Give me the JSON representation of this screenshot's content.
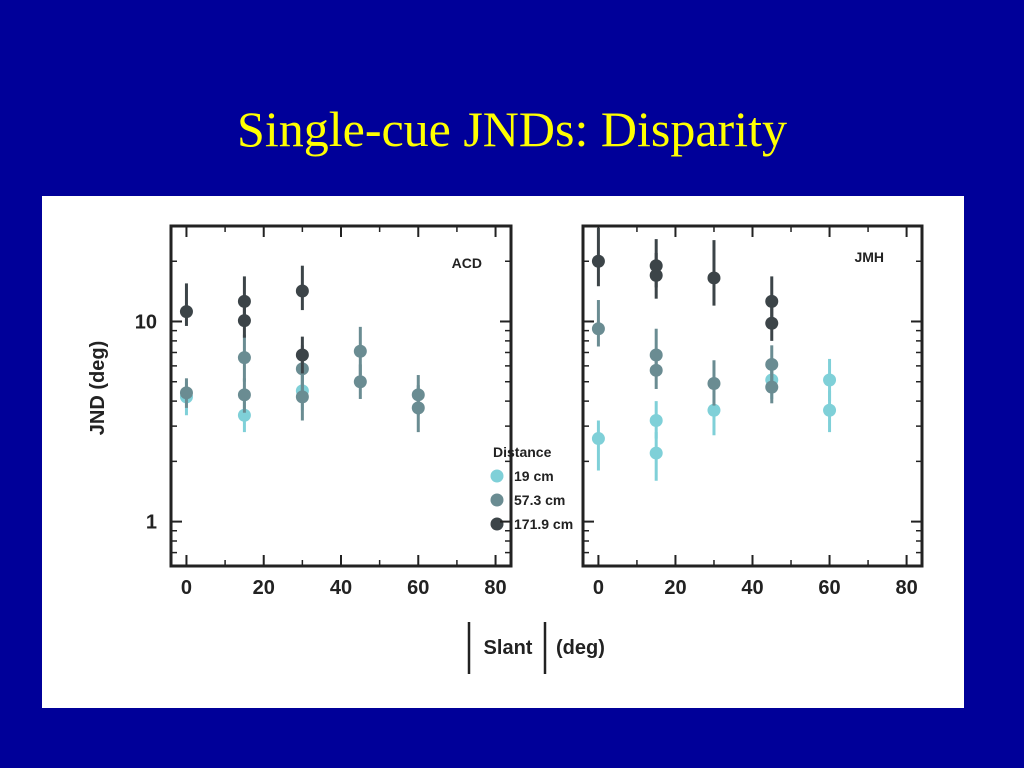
{
  "slide": {
    "title": "Single-cue JNDs: Disparity"
  },
  "colors": {
    "background": "#000099",
    "title": "#ffff00",
    "panel": "#ffffff"
  },
  "labels": {
    "ylabel": "JND (deg)",
    "xlabel_slant": "Slant",
    "xlabel_unit": "(deg)",
    "legend_title": "Distance"
  },
  "chart_data": [
    {
      "type": "scatter",
      "panel": "ACD",
      "xlabel": "|Slant| (deg)",
      "ylabel": "JND (deg)",
      "xlim": [
        -4,
        84
      ],
      "ylim": [
        0.6,
        30
      ],
      "yscale": "log",
      "xticks": [
        0,
        20,
        40,
        60,
        80
      ],
      "yticks": [
        1,
        10
      ],
      "series": [
        {
          "name": "19 cm",
          "color": "#7fd0d8",
          "points": [
            {
              "x": 0,
              "y": 4.2,
              "lo": 3.4,
              "hi": 5.0
            },
            {
              "x": 15,
              "y": 3.4,
              "lo": 2.8,
              "hi": 4.2
            },
            {
              "x": 30,
              "y": 4.5,
              "lo": 3.6,
              "hi": 5.5
            }
          ]
        },
        {
          "name": "57.3 cm",
          "color": "#6a8c92",
          "points": [
            {
              "x": 0,
              "y": 4.4,
              "lo": 3.7,
              "hi": 5.2
            },
            {
              "x": 15,
              "y": 4.3,
              "lo": 3.5,
              "hi": 5.2
            },
            {
              "x": 15,
              "y": 6.6,
              "lo": 5.0,
              "hi": 8.6
            },
            {
              "x": 30,
              "y": 4.2,
              "lo": 3.2,
              "hi": 5.5
            },
            {
              "x": 30,
              "y": 5.8,
              "lo": 4.4,
              "hi": 7.6
            },
            {
              "x": 45,
              "y": 7.1,
              "lo": 5.4,
              "hi": 9.4
            },
            {
              "x": 45,
              "y": 5.0,
              "lo": 4.1,
              "hi": 6.1
            },
            {
              "x": 60,
              "y": 4.3,
              "lo": 3.4,
              "hi": 5.4
            },
            {
              "x": 60,
              "y": 3.7,
              "lo": 2.8,
              "hi": 4.8
            }
          ]
        },
        {
          "name": "171.9 cm",
          "color": "#3c4448",
          "points": [
            {
              "x": 0,
              "y": 11.2,
              "lo": 9.5,
              "hi": 15.5
            },
            {
              "x": 15,
              "y": 12.6,
              "lo": 10.2,
              "hi": 16.8
            },
            {
              "x": 15,
              "y": 10.1,
              "lo": 8.3,
              "hi": 12.7
            },
            {
              "x": 30,
              "y": 14.2,
              "lo": 11.4,
              "hi": 19.0
            },
            {
              "x": 30,
              "y": 6.8,
              "lo": 5.5,
              "hi": 8.4
            }
          ]
        }
      ]
    },
    {
      "type": "scatter",
      "panel": "JMH",
      "xlabel": "|Slant| (deg)",
      "ylabel": "JND (deg)",
      "xlim": [
        -4,
        84
      ],
      "ylim": [
        0.6,
        30
      ],
      "yscale": "log",
      "xticks": [
        0,
        20,
        40,
        60,
        80
      ],
      "yticks": [
        1,
        10
      ],
      "series": [
        {
          "name": "19 cm",
          "color": "#7fd0d8",
          "points": [
            {
              "x": 0,
              "y": 2.6,
              "lo": 1.8,
              "hi": 3.2
            },
            {
              "x": 15,
              "y": 3.2,
              "lo": 2.6,
              "hi": 4.0
            },
            {
              "x": 15,
              "y": 2.2,
              "lo": 1.6,
              "hi": 2.8
            },
            {
              "x": 30,
              "y": 3.6,
              "lo": 2.7,
              "hi": 4.6
            },
            {
              "x": 45,
              "y": 5.1,
              "lo": 4.1,
              "hi": 6.2
            },
            {
              "x": 60,
              "y": 5.1,
              "lo": 4.0,
              "hi": 6.5
            },
            {
              "x": 60,
              "y": 3.6,
              "lo": 2.8,
              "hi": 4.5
            }
          ]
        },
        {
          "name": "57.3 cm",
          "color": "#6a8c92",
          "points": [
            {
              "x": 0,
              "y": 9.2,
              "lo": 7.5,
              "hi": 12.8
            },
            {
              "x": 15,
              "y": 6.8,
              "lo": 5.4,
              "hi": 9.2
            },
            {
              "x": 15,
              "y": 5.7,
              "lo": 4.6,
              "hi": 7.0
            },
            {
              "x": 30,
              "y": 4.9,
              "lo": 3.8,
              "hi": 6.4
            },
            {
              "x": 45,
              "y": 6.1,
              "lo": 4.9,
              "hi": 7.6
            },
            {
              "x": 45,
              "y": 4.7,
              "lo": 3.9,
              "hi": 5.7
            }
          ]
        },
        {
          "name": "171.9 cm",
          "color": "#3c4448",
          "points": [
            {
              "x": 0,
              "y": 20.0,
              "lo": 15.0,
              "hi": 30.0
            },
            {
              "x": 15,
              "y": 19.0,
              "lo": 14.8,
              "hi": 25.8
            },
            {
              "x": 15,
              "y": 17.0,
              "lo": 13.0,
              "hi": 22.0
            },
            {
              "x": 30,
              "y": 16.5,
              "lo": 12.0,
              "hi": 25.5
            },
            {
              "x": 45,
              "y": 12.6,
              "lo": 10.2,
              "hi": 16.8
            },
            {
              "x": 45,
              "y": 9.8,
              "lo": 8.0,
              "hi": 12.0
            }
          ]
        }
      ]
    }
  ]
}
